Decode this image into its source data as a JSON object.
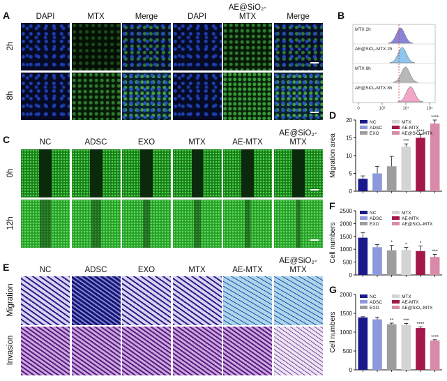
{
  "panels": {
    "A": {
      "label": "A",
      "columns": [
        "DAPI",
        "MTX",
        "Merge",
        "DAPI",
        "AE@SiO₂-MTX",
        "Merge"
      ],
      "rows": [
        "2h",
        "8h"
      ]
    },
    "B": {
      "label": "B",
      "tracks": [
        "MTX 2h",
        "AE@SiO₂-MTX 2h",
        "MTX 8h",
        "AE@SiO₂-MTX 8h"
      ],
      "track_colors": [
        "#8a84d8",
        "#8ec5ee",
        "#b8b8b8",
        "#f2a6c8"
      ],
      "axis_ticks": [
        "0",
        "10³",
        "10⁴",
        "10⁵"
      ]
    },
    "C": {
      "label": "C",
      "columns": [
        "NC",
        "ADSC",
        "EXO",
        "MTX",
        "AE-MTX",
        "AE@SiO₂-MTX"
      ],
      "rows": [
        "0h",
        "12h"
      ]
    },
    "E": {
      "label": "E",
      "columns": [
        "NC",
        "ADSC",
        "EXO",
        "MTX",
        "AE-MTX",
        "AE@SiO₂-MTX"
      ],
      "rows": [
        "Migration",
        "Invasion"
      ]
    }
  },
  "legend": [
    "NC",
    "ADSC",
    "EXO",
    "MTX",
    "AE-MTX",
    "AE@SiO₂-MTX"
  ],
  "colors": [
    "#1a1a8c",
    "#8e99dc",
    "#9d9d9d",
    "#d4d4d4",
    "#a3174a",
    "#d98aa8"
  ],
  "chart_data": [
    {
      "panel": "D",
      "type": "bar",
      "categories": [
        "NC",
        "ADSC",
        "EXO",
        "MTX",
        "AE-MTX",
        "AE@SiO₂-MTX"
      ],
      "values": [
        3.5,
        5,
        7,
        12.5,
        15,
        19
      ],
      "errors": [
        0.8,
        2,
        2.8,
        0.8,
        1,
        1
      ],
      "significance": [
        "",
        "",
        "",
        "***",
        "****",
        "****"
      ],
      "ylabel": "Migration area",
      "ylim": [
        0,
        20
      ],
      "yticks": [
        "0",
        "5",
        "10",
        "15",
        "20"
      ]
    },
    {
      "panel": "F",
      "type": "bar",
      "categories": [
        "NC",
        "ADSC",
        "EXO",
        "MTX",
        "AE-MTX",
        "AE@SiO₂-MTX"
      ],
      "values": [
        1450,
        1080,
        960,
        970,
        930,
        700
      ],
      "errors": [
        200,
        100,
        190,
        100,
        200,
        100
      ],
      "significance": [
        "",
        "",
        "*",
        "*",
        "*",
        "***"
      ],
      "ylabel": "Cell numbers",
      "ylim": [
        0,
        2500
      ],
      "yticks": [
        "0",
        "500",
        "1000",
        "1500",
        "2000",
        "2500"
      ]
    },
    {
      "panel": "G",
      "type": "bar",
      "categories": [
        "NC",
        "ADSC",
        "EXO",
        "MTX",
        "AE-MTX",
        "AE@SiO₂-MTX"
      ],
      "values": [
        1390,
        1340,
        1210,
        1190,
        1110,
        780
      ],
      "errors": [
        20,
        60,
        30,
        40,
        30,
        20
      ],
      "significance": [
        "",
        "",
        "**",
        "***",
        "****",
        "****"
      ],
      "ylabel": "Cell numbers",
      "ylim": [
        0,
        2000
      ],
      "yticks": [
        "0",
        "500",
        "1000",
        "1500",
        "2000"
      ]
    }
  ]
}
